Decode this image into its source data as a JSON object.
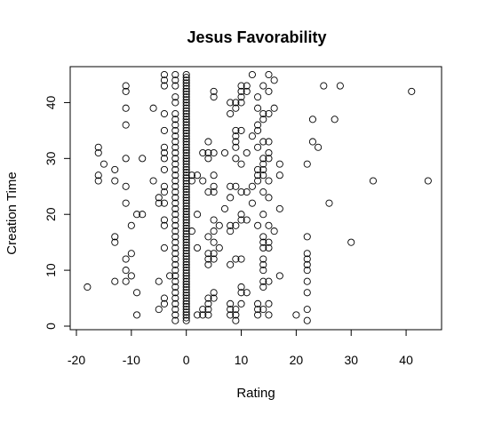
{
  "chart_data": {
    "type": "scatter",
    "title": "Jesus Favorability",
    "xlabel": "Rating",
    "ylabel": "Creation Time",
    "xlim": [
      -20,
      45
    ],
    "ylim": [
      0,
      45
    ],
    "xticks": [
      -20,
      -10,
      0,
      10,
      20,
      30,
      40
    ],
    "yticks": [
      0,
      10,
      20,
      30,
      40
    ],
    "grid": false,
    "marker": "open-circle",
    "points": [
      [
        -18,
        7
      ],
      [
        -16,
        32
      ],
      [
        -16,
        31
      ],
      [
        -16,
        27
      ],
      [
        -16,
        26
      ],
      [
        -15,
        29
      ],
      [
        -13,
        28
      ],
      [
        -13,
        26
      ],
      [
        -13,
        16
      ],
      [
        -13,
        15
      ],
      [
        -13,
        8
      ],
      [
        -11,
        43
      ],
      [
        -11,
        42
      ],
      [
        -11,
        39
      ],
      [
        -11,
        36
      ],
      [
        -11,
        30
      ],
      [
        -11,
        25
      ],
      [
        -11,
        22
      ],
      [
        -11,
        12
      ],
      [
        -11,
        10
      ],
      [
        -11,
        8
      ],
      [
        -10,
        13
      ],
      [
        -10,
        9
      ],
      [
        -10,
        18
      ],
      [
        -9,
        20
      ],
      [
        -9,
        6
      ],
      [
        -9,
        2
      ],
      [
        -8,
        30
      ],
      [
        -8,
        20
      ],
      [
        -6,
        39
      ],
      [
        -6,
        26
      ],
      [
        -5,
        23
      ],
      [
        -5,
        22
      ],
      [
        -5,
        8
      ],
      [
        -5,
        3
      ],
      [
        -4,
        45
      ],
      [
        -4,
        44
      ],
      [
        -4,
        43
      ],
      [
        -4,
        38
      ],
      [
        -4,
        35
      ],
      [
        -4,
        32
      ],
      [
        -4,
        31
      ],
      [
        -4,
        30
      ],
      [
        -4,
        28
      ],
      [
        -4,
        25
      ],
      [
        -4,
        24
      ],
      [
        -4,
        22
      ],
      [
        -4,
        19
      ],
      [
        -4,
        18
      ],
      [
        -4,
        14
      ],
      [
        -4,
        5
      ],
      [
        -4,
        4
      ],
      [
        -3,
        9
      ],
      [
        -2,
        45
      ],
      [
        -2,
        44
      ],
      [
        -2,
        43
      ],
      [
        -2,
        41
      ],
      [
        -2,
        40
      ],
      [
        -2,
        38
      ],
      [
        -2,
        37
      ],
      [
        -2,
        36
      ],
      [
        -2,
        35
      ],
      [
        -2,
        34
      ],
      [
        -2,
        33
      ],
      [
        -2,
        32
      ],
      [
        -2,
        31
      ],
      [
        -2,
        30
      ],
      [
        -2,
        29
      ],
      [
        -2,
        28
      ],
      [
        -2,
        27
      ],
      [
        -2,
        26
      ],
      [
        -2,
        25
      ],
      [
        -2,
        24
      ],
      [
        -2,
        23
      ],
      [
        -2,
        22
      ],
      [
        -2,
        21
      ],
      [
        -2,
        20
      ],
      [
        -2,
        19
      ],
      [
        -2,
        18
      ],
      [
        -2,
        17
      ],
      [
        -2,
        16
      ],
      [
        -2,
        15
      ],
      [
        -2,
        14
      ],
      [
        -2,
        13
      ],
      [
        -2,
        12
      ],
      [
        -2,
        11
      ],
      [
        -2,
        10
      ],
      [
        -2,
        9
      ],
      [
        -2,
        8
      ],
      [
        -2,
        7
      ],
      [
        -2,
        6
      ],
      [
        -2,
        5
      ],
      [
        -2,
        4
      ],
      [
        -2,
        3
      ],
      [
        -2,
        2
      ],
      [
        -2,
        1
      ],
      [
        0,
        45
      ],
      [
        0,
        44.5
      ],
      [
        0,
        44
      ],
      [
        0,
        43.5
      ],
      [
        0,
        43
      ],
      [
        0,
        42.5
      ],
      [
        0,
        42
      ],
      [
        0,
        41.5
      ],
      [
        0,
        41
      ],
      [
        0,
        40.5
      ],
      [
        0,
        40
      ],
      [
        0,
        39.5
      ],
      [
        0,
        39
      ],
      [
        0,
        38.5
      ],
      [
        0,
        38
      ],
      [
        0,
        37.5
      ],
      [
        0,
        37
      ],
      [
        0,
        36.5
      ],
      [
        0,
        36
      ],
      [
        0,
        35.5
      ],
      [
        0,
        35
      ],
      [
        0,
        34.5
      ],
      [
        0,
        34
      ],
      [
        0,
        33.5
      ],
      [
        0,
        33
      ],
      [
        0,
        32.5
      ],
      [
        0,
        32
      ],
      [
        0,
        31.5
      ],
      [
        0,
        31
      ],
      [
        0,
        30.5
      ],
      [
        0,
        30
      ],
      [
        0,
        29.5
      ],
      [
        0,
        29
      ],
      [
        0,
        28.5
      ],
      [
        0,
        28
      ],
      [
        0,
        27.5
      ],
      [
        0,
        27
      ],
      [
        0,
        26.5
      ],
      [
        0,
        26
      ],
      [
        0,
        25.5
      ],
      [
        0,
        25
      ],
      [
        0,
        24.5
      ],
      [
        0,
        24
      ],
      [
        0,
        23.5
      ],
      [
        0,
        23
      ],
      [
        0,
        22.5
      ],
      [
        0,
        22
      ],
      [
        0,
        21.5
      ],
      [
        0,
        21
      ],
      [
        0,
        20.5
      ],
      [
        0,
        20
      ],
      [
        0,
        19.5
      ],
      [
        0,
        19
      ],
      [
        0,
        18.5
      ],
      [
        0,
        18
      ],
      [
        0,
        17.5
      ],
      [
        0,
        17
      ],
      [
        0,
        16.5
      ],
      [
        0,
        16
      ],
      [
        0,
        15.5
      ],
      [
        0,
        15
      ],
      [
        0,
        14.5
      ],
      [
        0,
        14
      ],
      [
        0,
        13.5
      ],
      [
        0,
        13
      ],
      [
        0,
        12.5
      ],
      [
        0,
        12
      ],
      [
        0,
        11.5
      ],
      [
        0,
        11
      ],
      [
        0,
        10.5
      ],
      [
        0,
        10
      ],
      [
        0,
        9.5
      ],
      [
        0,
        9
      ],
      [
        0,
        8.5
      ],
      [
        0,
        8
      ],
      [
        0,
        7.5
      ],
      [
        0,
        7
      ],
      [
        0,
        6.5
      ],
      [
        0,
        6
      ],
      [
        0,
        5.5
      ],
      [
        0,
        5
      ],
      [
        0,
        4.5
      ],
      [
        0,
        4
      ],
      [
        0,
        3.5
      ],
      [
        0,
        3
      ],
      [
        0,
        2.5
      ],
      [
        0,
        2
      ],
      [
        0,
        1.5
      ],
      [
        0,
        1
      ],
      [
        1,
        27
      ],
      [
        1,
        26
      ],
      [
        1,
        17
      ],
      [
        2,
        27
      ],
      [
        2,
        20
      ],
      [
        2,
        14
      ],
      [
        2,
        2
      ],
      [
        3,
        31
      ],
      [
        3,
        26
      ],
      [
        3,
        3
      ],
      [
        3,
        2
      ],
      [
        4,
        33
      ],
      [
        4,
        31
      ],
      [
        4,
        30
      ],
      [
        4,
        24
      ],
      [
        4,
        16
      ],
      [
        4,
        13
      ],
      [
        4,
        12
      ],
      [
        4,
        11
      ],
      [
        4,
        5
      ],
      [
        4,
        4
      ],
      [
        4,
        3
      ],
      [
        4,
        2
      ],
      [
        5,
        42
      ],
      [
        5,
        41
      ],
      [
        5,
        31
      ],
      [
        5,
        27
      ],
      [
        5,
        25
      ],
      [
        5,
        24
      ],
      [
        5,
        19
      ],
      [
        5,
        17
      ],
      [
        5,
        15
      ],
      [
        5,
        13
      ],
      [
        5,
        12
      ],
      [
        5,
        6
      ],
      [
        5,
        5
      ],
      [
        6,
        14
      ],
      [
        6,
        18
      ],
      [
        7,
        21
      ],
      [
        7,
        31
      ],
      [
        8,
        18
      ],
      [
        8,
        17
      ],
      [
        8,
        11
      ],
      [
        8,
        40
      ],
      [
        8,
        38
      ],
      [
        8,
        25
      ],
      [
        8,
        23
      ],
      [
        8,
        4
      ],
      [
        8,
        3
      ],
      [
        8,
        2
      ],
      [
        9,
        40
      ],
      [
        9,
        39
      ],
      [
        9,
        35
      ],
      [
        9,
        34
      ],
      [
        9,
        33
      ],
      [
        9,
        32
      ],
      [
        9,
        30
      ],
      [
        9,
        25
      ],
      [
        9,
        18
      ],
      [
        9,
        12
      ],
      [
        9,
        3
      ],
      [
        9,
        2
      ],
      [
        9,
        1
      ],
      [
        10,
        43
      ],
      [
        10,
        42
      ],
      [
        10,
        41
      ],
      [
        10,
        40
      ],
      [
        10,
        35
      ],
      [
        10,
        29
      ],
      [
        10,
        24
      ],
      [
        10,
        20
      ],
      [
        10,
        19
      ],
      [
        10,
        12
      ],
      [
        10,
        7
      ],
      [
        10,
        6
      ],
      [
        10,
        4
      ],
      [
        11,
        43
      ],
      [
        11,
        42
      ],
      [
        11,
        31
      ],
      [
        11,
        24
      ],
      [
        11,
        19
      ],
      [
        11,
        6
      ],
      [
        12,
        45
      ],
      [
        12,
        34
      ],
      [
        12,
        25
      ],
      [
        12,
        22
      ],
      [
        13,
        41
      ],
      [
        13,
        39
      ],
      [
        13,
        36
      ],
      [
        13,
        35
      ],
      [
        13,
        32
      ],
      [
        13,
        28
      ],
      [
        13,
        27
      ],
      [
        13,
        26
      ],
      [
        13,
        18
      ],
      [
        13,
        4
      ],
      [
        13,
        3
      ],
      [
        13,
        2
      ],
      [
        14,
        43
      ],
      [
        14,
        38
      ],
      [
        14,
        37
      ],
      [
        14,
        33
      ],
      [
        14,
        30
      ],
      [
        14,
        29
      ],
      [
        14,
        28
      ],
      [
        14,
        27
      ],
      [
        14,
        24
      ],
      [
        14,
        20
      ],
      [
        14,
        16
      ],
      [
        14,
        15
      ],
      [
        14,
        14
      ],
      [
        14,
        12
      ],
      [
        14,
        11
      ],
      [
        14,
        10
      ],
      [
        14,
        8
      ],
      [
        14,
        7
      ],
      [
        14,
        3
      ],
      [
        15,
        45
      ],
      [
        15,
        42
      ],
      [
        15,
        38
      ],
      [
        15,
        33
      ],
      [
        15,
        31
      ],
      [
        15,
        30
      ],
      [
        15,
        26
      ],
      [
        15,
        23
      ],
      [
        15,
        18
      ],
      [
        15,
        15
      ],
      [
        15,
        14
      ],
      [
        15,
        8
      ],
      [
        15,
        4
      ],
      [
        15,
        2
      ],
      [
        16,
        44
      ],
      [
        16,
        39
      ],
      [
        16,
        17
      ],
      [
        17,
        29
      ],
      [
        17,
        27
      ],
      [
        17,
        21
      ],
      [
        17,
        9
      ],
      [
        20,
        2
      ],
      [
        22,
        29
      ],
      [
        22,
        16
      ],
      [
        22,
        13
      ],
      [
        22,
        12
      ],
      [
        22,
        11
      ],
      [
        22,
        10
      ],
      [
        22,
        8
      ],
      [
        22,
        6
      ],
      [
        22,
        3
      ],
      [
        22,
        1
      ],
      [
        23,
        37
      ],
      [
        23,
        33
      ],
      [
        24,
        32
      ],
      [
        25,
        43
      ],
      [
        26,
        22
      ],
      [
        27,
        37
      ],
      [
        28,
        43
      ],
      [
        30,
        15
      ],
      [
        34,
        26
      ],
      [
        41,
        42
      ],
      [
        44,
        26
      ]
    ]
  }
}
